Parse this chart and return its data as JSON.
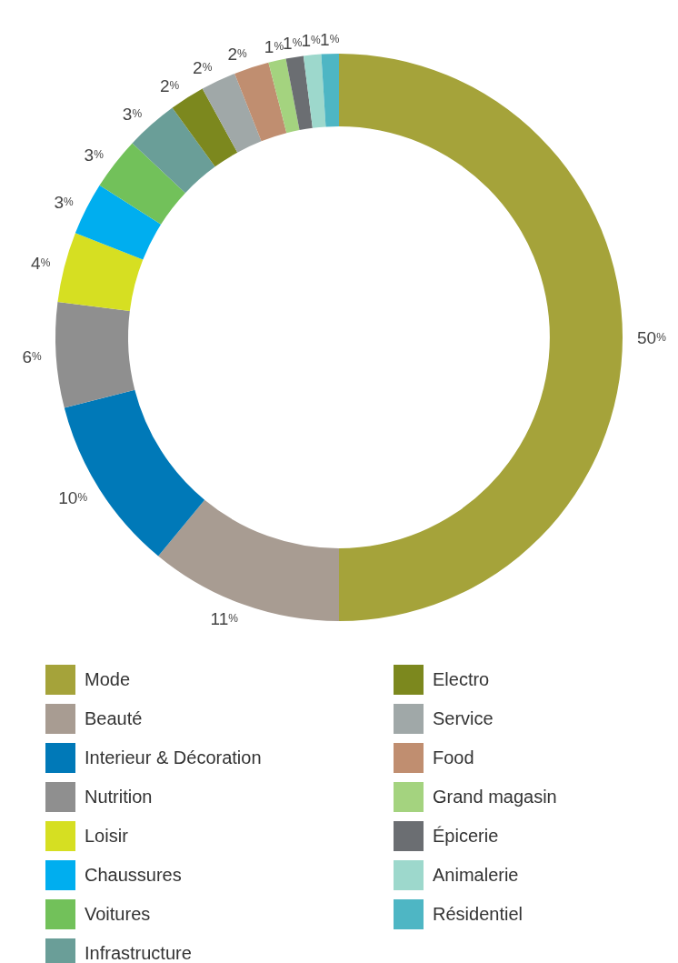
{
  "chart_data": {
    "type": "donut",
    "categories": [
      "Mode",
      "Beauté",
      "Interieur & Décoration",
      "Nutrition",
      "Loisir",
      "Chaussures",
      "Voitures",
      "Infrastructure",
      "Electro",
      "Service",
      "Food",
      "Grand magasin",
      "Épicerie",
      "Animalerie",
      "Résidentiel"
    ],
    "values": [
      50,
      11,
      10,
      6,
      4,
      3,
      3,
      3,
      2,
      2,
      2,
      1,
      1,
      1,
      1
    ],
    "value_labels": [
      "50%",
      "11%",
      "10%",
      "6%",
      "4%",
      "3%",
      "3%",
      "3%",
      "2%",
      "2%",
      "2%",
      "1%",
      "1%",
      "1%",
      "1%"
    ],
    "colors": [
      "#a5a33a",
      "#a89c92",
      "#0079b8",
      "#8f8f8f",
      "#d6df22",
      "#00aeef",
      "#72c15a",
      "#6a9e98",
      "#7c881e",
      "#a0a8a8",
      "#c08e70",
      "#a4d37f",
      "#6b6e72",
      "#9dd8cc",
      "#4eb6c4"
    ],
    "legend": "bottom"
  }
}
